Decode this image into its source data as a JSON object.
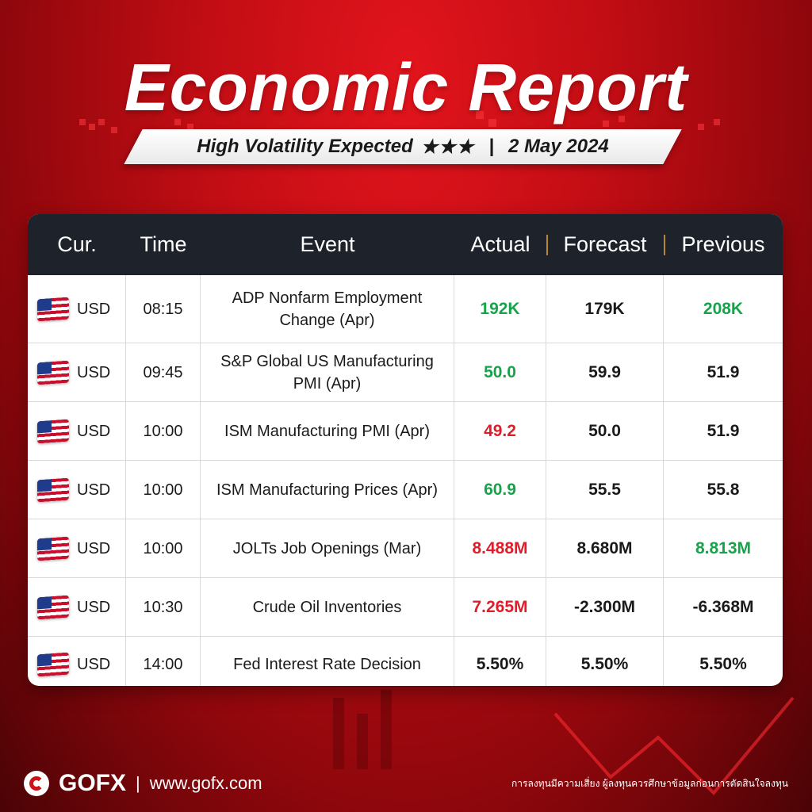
{
  "header": {
    "title": "Economic Report",
    "subtitle": "High Volatility Expected",
    "stars": "★★★",
    "separator": "|",
    "date": "2 May 2024"
  },
  "table": {
    "columns": [
      "Cur.",
      "Time",
      "Event",
      "Actual",
      "Forecast",
      "Previous"
    ],
    "rows": [
      {
        "flag": "us-flag-icon",
        "currency": "USD",
        "time": "08:15",
        "event": "ADP Nonfarm Employment Change (Apr)",
        "actual": "192K",
        "forecast": "179K",
        "previous": "208K",
        "actual_color": "pos",
        "previous_color": "pos"
      },
      {
        "flag": "us-flag-icon",
        "currency": "USD",
        "time": "09:45",
        "event": "S&P Global US Manufacturing PMI (Apr)",
        "actual": "50.0",
        "forecast": "59.9",
        "previous": "51.9",
        "actual_color": "pos",
        "previous_color": "neu"
      },
      {
        "flag": "us-flag-icon",
        "currency": "USD",
        "time": "10:00",
        "event": "ISM Manufacturing PMI (Apr)",
        "actual": "49.2",
        "forecast": "50.0",
        "previous": "51.9",
        "actual_color": "neg",
        "previous_color": "neu"
      },
      {
        "flag": "us-flag-icon",
        "currency": "USD",
        "time": "10:00",
        "event": "ISM Manufacturing Prices (Apr)",
        "actual": "60.9",
        "forecast": "55.5",
        "previous": "55.8",
        "actual_color": "pos",
        "previous_color": "neu"
      },
      {
        "flag": "us-flag-icon",
        "currency": "USD",
        "time": "10:00",
        "event": "JOLTs Job Openings (Mar)",
        "actual": "8.488M",
        "forecast": "8.680M",
        "previous": "8.813M",
        "actual_color": "neg",
        "previous_color": "pos"
      },
      {
        "flag": "us-flag-icon",
        "currency": "USD",
        "time": "10:30",
        "event": "Crude Oil Inventories",
        "actual": "7.265M",
        "forecast": "-2.300M",
        "previous": "-6.368M",
        "actual_color": "neg",
        "previous_color": "neu"
      },
      {
        "flag": "us-flag-icon",
        "currency": "USD",
        "time": "14:00",
        "event": "Fed Interest Rate Decision",
        "actual": "5.50%",
        "forecast": "5.50%",
        "previous": "5.50%",
        "actual_color": "neu",
        "previous_color": "neu"
      }
    ]
  },
  "footer": {
    "brand": "GOFX",
    "separator": "|",
    "url": "www.gofx.com",
    "disclaimer": "การลงทุนมีความเสี่ยง ผู้ลงทุนควรศึกษาข้อมูลก่อนการตัดสินใจลงทุน"
  },
  "colors": {
    "background": "#c20d14",
    "header_bar": "#1d222b",
    "positive": "#16a34a",
    "negative": "#e11d2a",
    "accent_gold": "#b8862e"
  }
}
